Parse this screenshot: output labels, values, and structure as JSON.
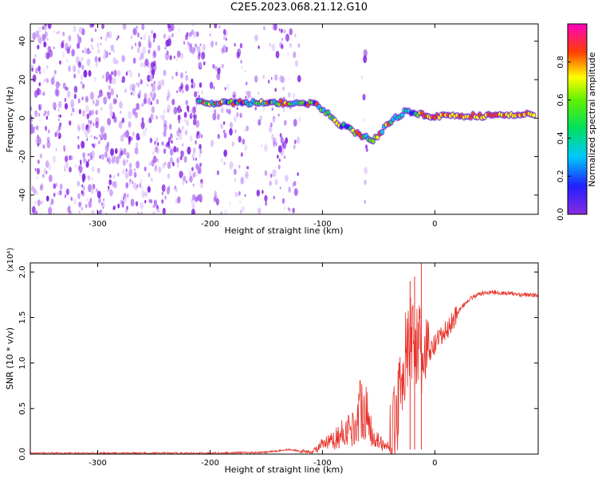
{
  "title": "C2E5.2023.068.21.12.G10",
  "chart_data": [
    {
      "type": "heatmap",
      "xlabel": "Height of straight line (km)",
      "ylabel": "Frequency (Hz)",
      "xlim": [
        -360,
        92
      ],
      "ylim": [
        -50,
        49
      ],
      "xticks": [
        -300,
        -200,
        -100,
        0
      ],
      "yticks": [
        -40,
        -20,
        0,
        20,
        40
      ],
      "colorbar": {
        "label": "Normalized spectral amplitude",
        "range": [
          0.0,
          1.0
        ],
        "ticks": [
          0.0,
          0.2,
          0.4,
          0.6,
          0.8
        ],
        "colormap": "rainbow (purple-blue-cyan-green-yellow-red-magenta)"
      },
      "ridge": {
        "description": "dominant frequency ridge",
        "points": [
          {
            "x": -210,
            "y": 8
          },
          {
            "x": -185,
            "y": 8
          },
          {
            "x": -160,
            "y": 8
          },
          {
            "x": -135,
            "y": 8
          },
          {
            "x": -115,
            "y": 8
          },
          {
            "x": -105,
            "y": 7
          },
          {
            "x": -95,
            "y": 2
          },
          {
            "x": -85,
            "y": -3
          },
          {
            "x": -75,
            "y": -6
          },
          {
            "x": -65,
            "y": -9
          },
          {
            "x": -55,
            "y": -12
          },
          {
            "x": -45,
            "y": -5
          },
          {
            "x": -35,
            "y": 0
          },
          {
            "x": -25,
            "y": 4
          },
          {
            "x": -15,
            "y": 2
          },
          {
            "x": 0,
            "y": 1
          },
          {
            "x": 30,
            "y": 1
          },
          {
            "x": 60,
            "y": 1.5
          },
          {
            "x": 90,
            "y": 2
          }
        ]
      }
    },
    {
      "type": "line",
      "xlabel": "Height of straight line (km)",
      "ylabel": "SNR (10 * v/v)",
      "yscale_note": "(x10⁴)",
      "xlim": [
        -360,
        92
      ],
      "ylim": [
        0,
        2.1
      ],
      "xticks": [
        -300,
        -200,
        -100,
        0
      ],
      "yticks": [
        0.0,
        0.5,
        1.0,
        1.5,
        2.0
      ],
      "series": [
        {
          "color": "#e8322a",
          "x": [
            -360,
            -300,
            -250,
            -200,
            -150,
            -130,
            -110,
            -100,
            -90,
            -80,
            -70,
            -65,
            -60,
            -55,
            -50,
            -45,
            -40,
            -35,
            -30,
            -25,
            -20,
            -15,
            -10,
            -5,
            0,
            10,
            20,
            30,
            40,
            50,
            60,
            70,
            80,
            92
          ],
          "y": [
            0.01,
            0.01,
            0.01,
            0.01,
            0.02,
            0.05,
            0.02,
            0.1,
            0.15,
            0.25,
            0.3,
            0.6,
            0.4,
            0.2,
            0.15,
            0.08,
            0.1,
            0.3,
            0.9,
            1.1,
            1.3,
            1.2,
            1.0,
            1.1,
            1.2,
            1.35,
            1.55,
            1.7,
            1.76,
            1.78,
            1.77,
            1.76,
            1.75,
            1.74
          ]
        }
      ]
    }
  ]
}
